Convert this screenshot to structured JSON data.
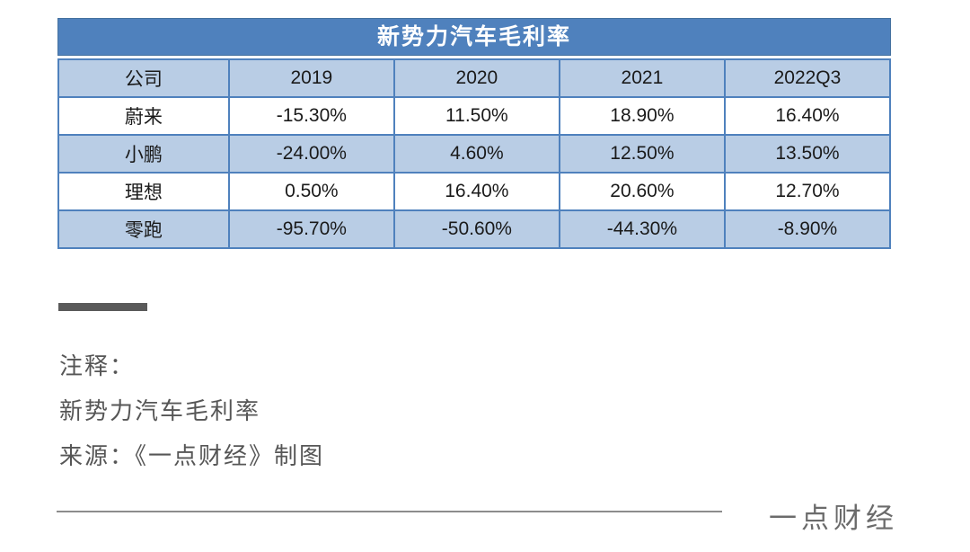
{
  "table": {
    "title": "新势力汽车毛利率",
    "columns": [
      "公司",
      "2019",
      "2020",
      "2021",
      "2022Q3"
    ],
    "rows": [
      {
        "company": "蔚来",
        "values": [
          "-15.30%",
          "11.50%",
          "18.90%",
          "16.40%"
        ]
      },
      {
        "company": "小鹏",
        "values": [
          "-24.00%",
          "4.60%",
          "12.50%",
          "13.50%"
        ]
      },
      {
        "company": "理想",
        "values": [
          "0.50%",
          "16.40%",
          "20.60%",
          "12.70%"
        ]
      },
      {
        "company": "零跑",
        "values": [
          "-95.70%",
          "-50.60%",
          "-44.30%",
          "-8.90%"
        ]
      }
    ]
  },
  "chart_data": {
    "type": "table",
    "title": "新势力汽车毛利率",
    "categories": [
      "2019",
      "2020",
      "2021",
      "2022Q3"
    ],
    "series": [
      {
        "name": "蔚来",
        "values": [
          -15.3,
          11.5,
          18.9,
          16.4
        ]
      },
      {
        "name": "小鹏",
        "values": [
          -24.0,
          4.6,
          12.5,
          13.5
        ]
      },
      {
        "name": "理想",
        "values": [
          0.5,
          16.4,
          20.6,
          12.7
        ]
      },
      {
        "name": "零跑",
        "values": [
          -95.7,
          -50.6,
          -44.3,
          -8.9
        ]
      }
    ],
    "unit": "%",
    "notes": "values are gross margin percentages; banded blue table, header row light blue, title bar medium blue"
  },
  "notes": {
    "heading": "注释：",
    "line1": "新势力汽车毛利率",
    "line2": "来源：《一点财经》制图"
  },
  "footer": {
    "brand": "一点财经"
  },
  "colors": {
    "title_bg": "#4f81bd",
    "band_bg": "#b9cde5",
    "border": "#4f81bd",
    "note_text": "#565656",
    "rule": "#8c8c8c"
  }
}
